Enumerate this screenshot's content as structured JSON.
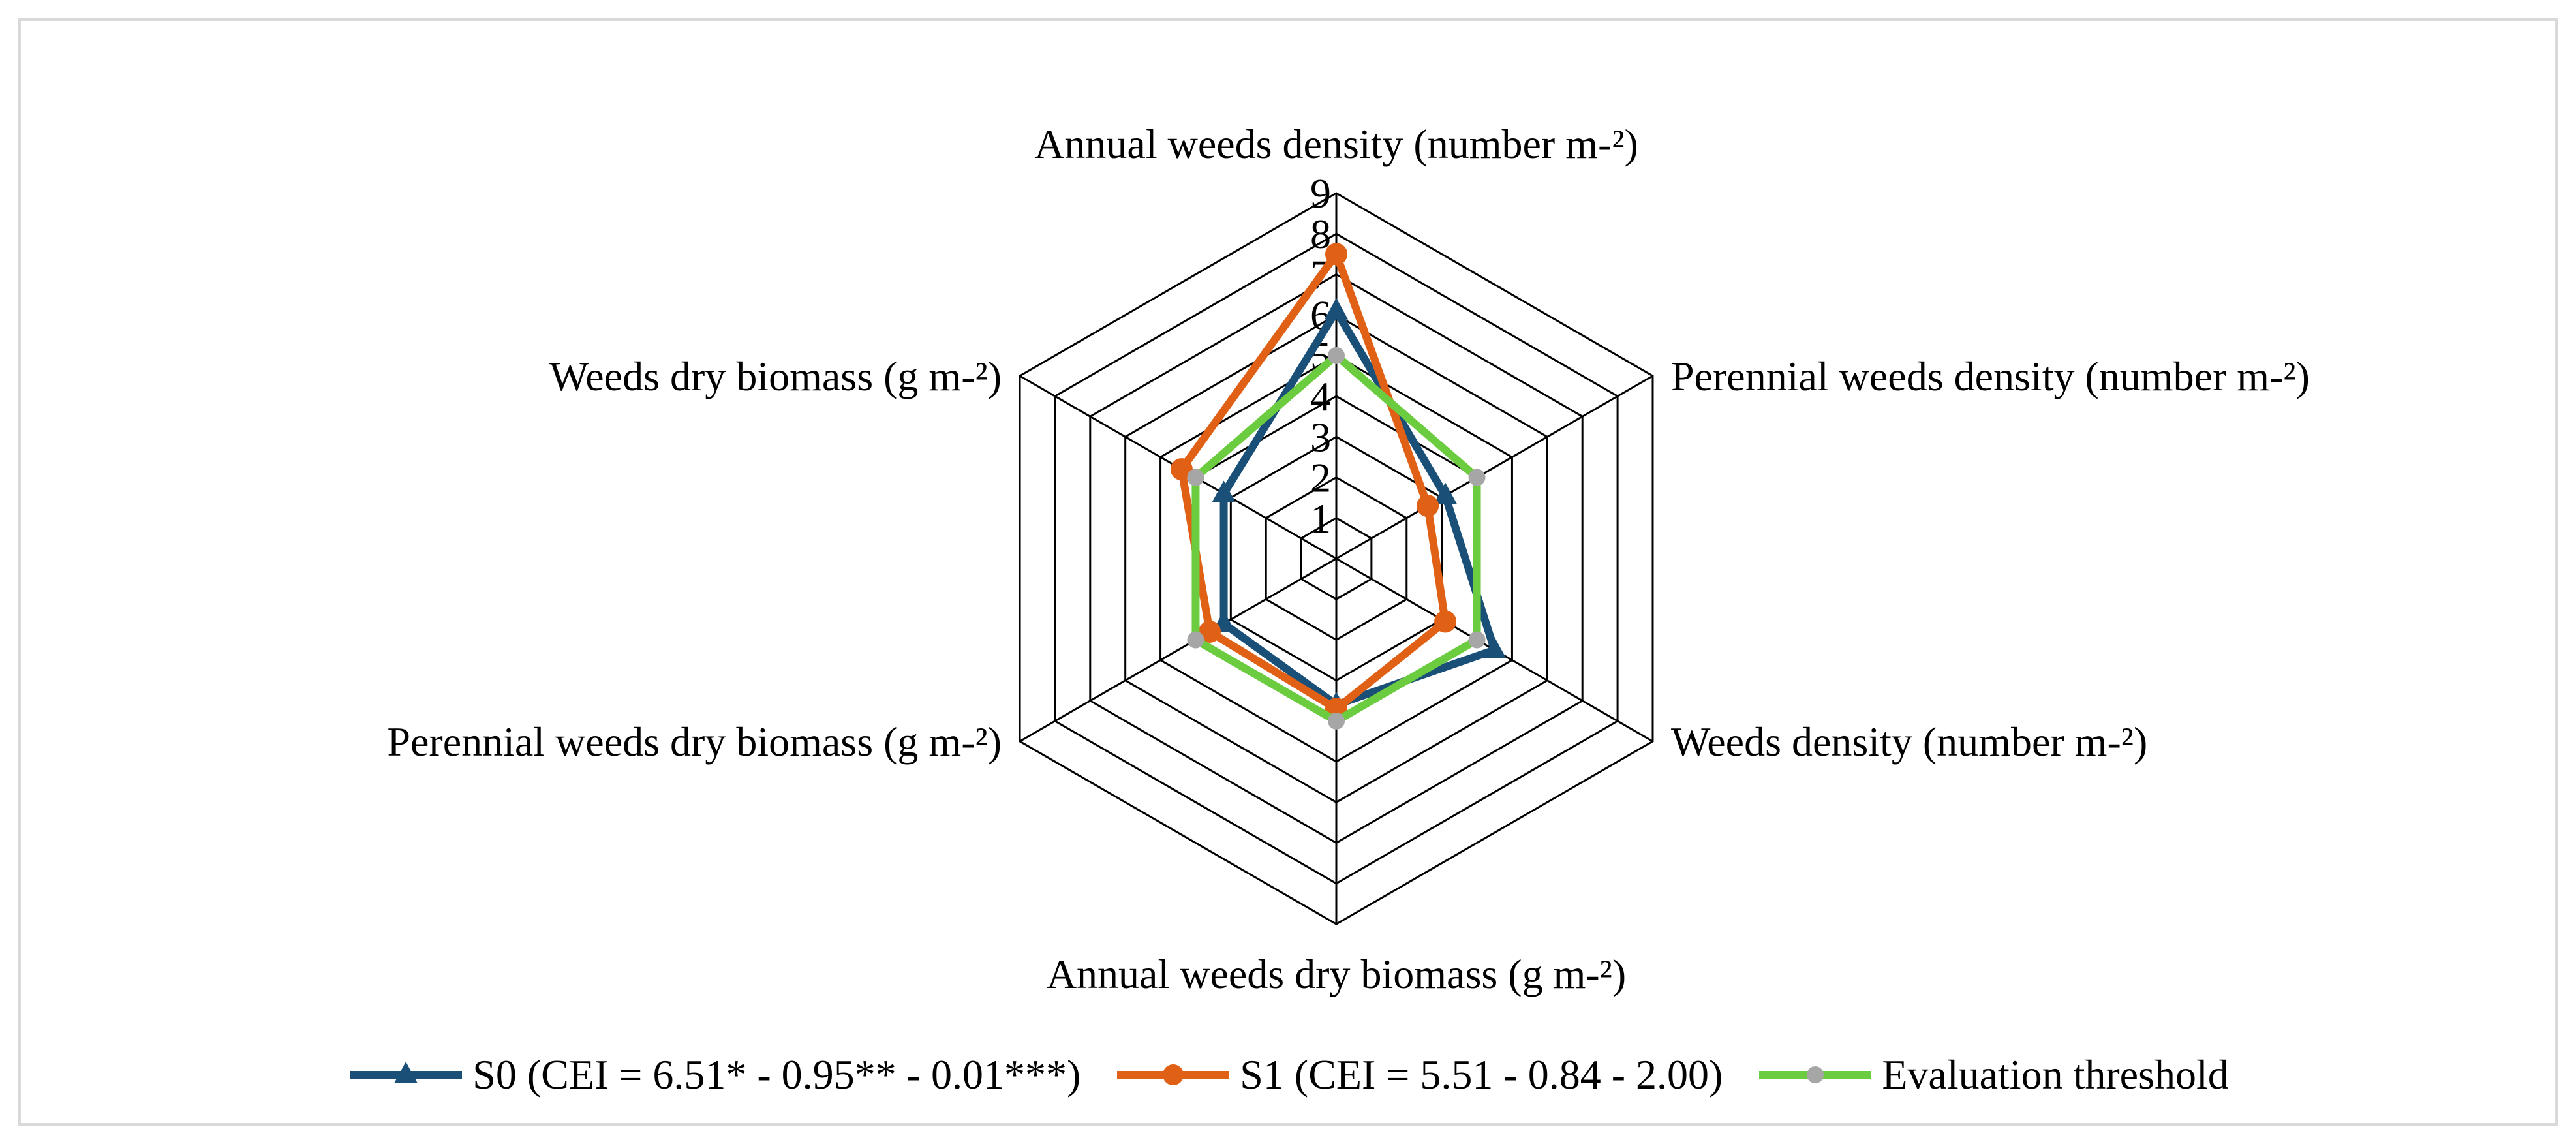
{
  "chart_data": {
    "type": "radar",
    "title": "",
    "categories": [
      "Annual weeds density (number m-²)",
      "Perennial weeds density (number m-²)",
      "Weeds density (number m-²)",
      "Annual weeds dry biomass (g m-²)",
      "Perennial weeds dry biomass (g m-²)",
      "Weeds dry biomass (g m-²)"
    ],
    "rlim": [
      0,
      9
    ],
    "ticks": [
      "1",
      "2",
      "3",
      "4",
      "5",
      "6",
      "7",
      "8",
      "9"
    ],
    "series": [
      {
        "name": "S0 (CEI = 6.51* - 0.95** - 0.01***)",
        "color": "#1a4f78",
        "marker": "triangle",
        "values": [
          6.1,
          3.1,
          4.5,
          3.6,
          3.2,
          3.2
        ]
      },
      {
        "name": "S1 (CEI = 5.51 - 0.84 - 2.00)",
        "color": "#e06116",
        "marker": "circle",
        "values": [
          7.5,
          2.6,
          3.1,
          3.7,
          3.6,
          4.4
        ]
      },
      {
        "name": "Evaluation threshold",
        "color": "#6ccc3f",
        "marker": "circle-gray",
        "values": [
          5.0,
          4.0,
          4.0,
          4.0,
          4.0,
          4.0
        ]
      }
    ],
    "legend_position": "bottom"
  }
}
